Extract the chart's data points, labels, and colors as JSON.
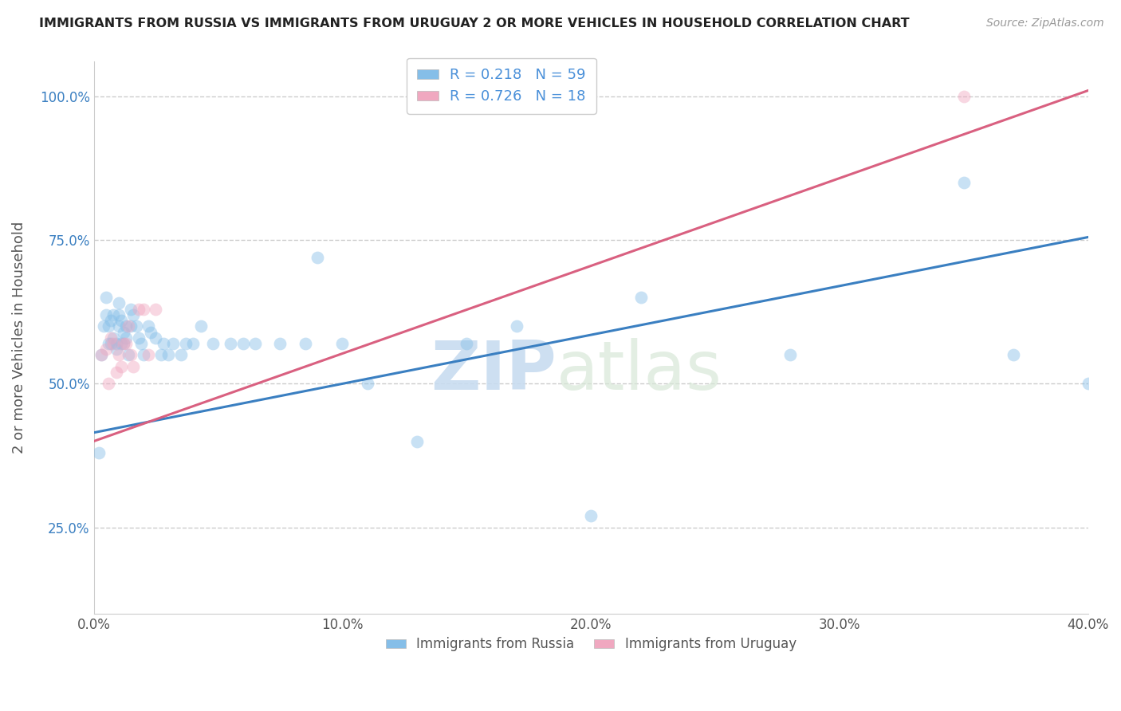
{
  "title": "IMMIGRANTS FROM RUSSIA VS IMMIGRANTS FROM URUGUAY 2 OR MORE VEHICLES IN HOUSEHOLD CORRELATION CHART",
  "source_text": "Source: ZipAtlas.com",
  "ylabel": "2 or more Vehicles in Household",
  "xlabel": "",
  "watermark_zip": "ZIP",
  "watermark_atlas": "atlas",
  "legend_russia": "Immigrants from Russia",
  "legend_uruguay": "Immigrants from Uruguay",
  "R_russia": 0.218,
  "N_russia": 59,
  "R_uruguay": 0.726,
  "N_uruguay": 18,
  "xlim": [
    0.0,
    0.4
  ],
  "ylim": [
    0.1,
    1.06
  ],
  "xtick_labels": [
    "0.0%",
    "10.0%",
    "20.0%",
    "30.0%",
    "40.0%"
  ],
  "xtick_values": [
    0.0,
    0.1,
    0.2,
    0.3,
    0.4
  ],
  "ytick_labels": [
    "25.0%",
    "50.0%",
    "75.0%",
    "100.0%"
  ],
  "ytick_values": [
    0.25,
    0.5,
    0.75,
    1.0
  ],
  "color_russia": "#85BEE8",
  "color_uruguay": "#F0A8C0",
  "line_color_russia": "#3A7FC1",
  "line_color_uruguay": "#D96080",
  "legend_text_color": "#4A90D9",
  "background_color": "#FFFFFF",
  "russia_x": [
    0.002,
    0.003,
    0.004,
    0.005,
    0.005,
    0.006,
    0.006,
    0.007,
    0.007,
    0.008,
    0.008,
    0.009,
    0.009,
    0.01,
    0.01,
    0.01,
    0.011,
    0.011,
    0.012,
    0.012,
    0.013,
    0.013,
    0.014,
    0.015,
    0.015,
    0.016,
    0.017,
    0.018,
    0.019,
    0.02,
    0.022,
    0.023,
    0.025,
    0.027,
    0.028,
    0.03,
    0.032,
    0.035,
    0.037,
    0.04,
    0.043,
    0.048,
    0.055,
    0.06,
    0.065,
    0.075,
    0.085,
    0.09,
    0.1,
    0.11,
    0.13,
    0.15,
    0.17,
    0.2,
    0.22,
    0.28,
    0.35,
    0.37,
    0.4
  ],
  "russia_y": [
    0.38,
    0.55,
    0.6,
    0.62,
    0.65,
    0.57,
    0.6,
    0.61,
    0.57,
    0.58,
    0.62,
    0.57,
    0.56,
    0.6,
    0.64,
    0.62,
    0.57,
    0.61,
    0.57,
    0.59,
    0.6,
    0.58,
    0.55,
    0.6,
    0.63,
    0.62,
    0.6,
    0.58,
    0.57,
    0.55,
    0.6,
    0.59,
    0.58,
    0.55,
    0.57,
    0.55,
    0.57,
    0.55,
    0.57,
    0.57,
    0.6,
    0.57,
    0.57,
    0.57,
    0.57,
    0.57,
    0.57,
    0.72,
    0.57,
    0.5,
    0.4,
    0.57,
    0.6,
    0.27,
    0.65,
    0.55,
    0.85,
    0.55,
    0.5
  ],
  "uruguay_x": [
    0.003,
    0.005,
    0.006,
    0.007,
    0.008,
    0.009,
    0.01,
    0.011,
    0.012,
    0.013,
    0.014,
    0.015,
    0.016,
    0.018,
    0.02,
    0.022,
    0.025,
    0.35
  ],
  "uruguay_y": [
    0.55,
    0.56,
    0.5,
    0.58,
    0.57,
    0.52,
    0.55,
    0.53,
    0.57,
    0.57,
    0.6,
    0.55,
    0.53,
    0.63,
    0.63,
    0.55,
    0.63,
    1.0
  ],
  "dot_size": 130,
  "dot_alpha": 0.45,
  "line_width": 2.2,
  "russia_line_x0": 0.0,
  "russia_line_y0": 0.415,
  "russia_line_x1": 0.4,
  "russia_line_y1": 0.755,
  "uruguay_line_x0": 0.0,
  "uruguay_line_y0": 0.4,
  "uruguay_line_x1": 0.4,
  "uruguay_line_y1": 1.01
}
